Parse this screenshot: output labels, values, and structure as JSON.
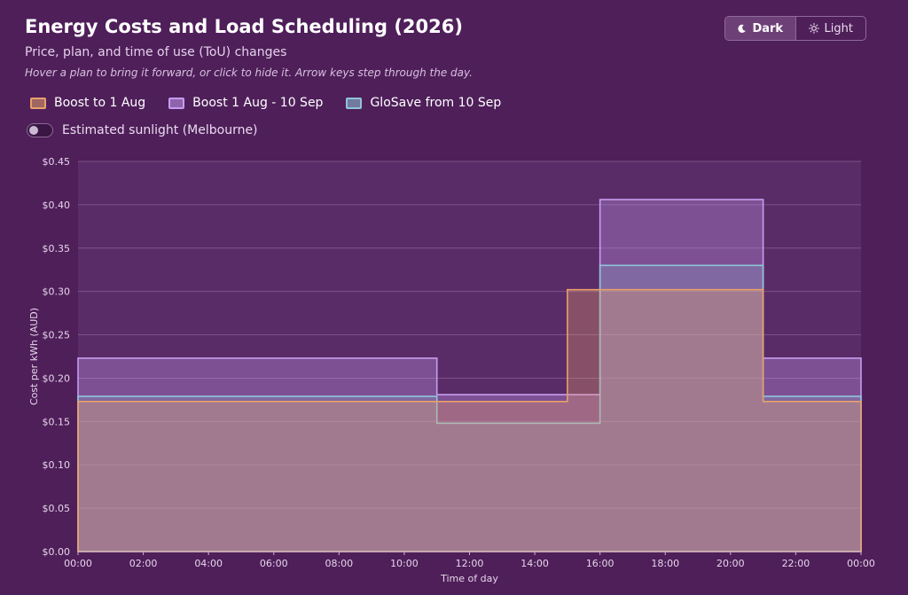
{
  "header": {
    "title": "Energy Costs and Load Scheduling (2026)",
    "subtitle": "Price, plan, and time of use (ToU) changes",
    "hint": "Hover a plan to bring it forward, or click to hide it. Arrow keys step through the day."
  },
  "theme": {
    "dark_label": "Dark",
    "light_label": "Light",
    "active": "dark"
  },
  "sunlight_toggle": {
    "label": "Estimated sunlight (Melbourne)",
    "on": false
  },
  "colors": {
    "background": "#4f1f5a",
    "plot_background": "#5a2c67",
    "grid": "#7a5286",
    "boost_aug": "#e8a06a",
    "boost_sep": "#c69cf0",
    "glosave": "#8fc4d8"
  },
  "chart_data": {
    "type": "area",
    "step": true,
    "xlabel": "Time of day",
    "ylabel": "Cost per kWh (AUD)",
    "xlim": [
      "00:00",
      "24:00"
    ],
    "ylim": [
      0,
      0.45
    ],
    "x_ticks": [
      "00:00",
      "02:00",
      "04:00",
      "06:00",
      "08:00",
      "10:00",
      "12:00",
      "14:00",
      "16:00",
      "18:00",
      "20:00",
      "22:00",
      "00:00"
    ],
    "y_ticks": [
      "$0.00",
      "$0.05",
      "$0.10",
      "$0.15",
      "$0.20",
      "$0.25",
      "$0.30",
      "$0.35",
      "$0.40",
      "$0.45"
    ],
    "grid": true,
    "legend_position": "top-left",
    "series": [
      {
        "name": "Boost to 1 Aug",
        "color_key": "boost_aug",
        "segments": [
          {
            "start": "00:00",
            "end": "15:00",
            "value": 0.173
          },
          {
            "start": "15:00",
            "end": "21:00",
            "value": 0.302
          },
          {
            "start": "21:00",
            "end": "24:00",
            "value": 0.173
          }
        ]
      },
      {
        "name": "Boost 1 Aug - 10 Sep",
        "color_key": "boost_sep",
        "segments": [
          {
            "start": "00:00",
            "end": "11:00",
            "value": 0.223
          },
          {
            "start": "11:00",
            "end": "16:00",
            "value": 0.181
          },
          {
            "start": "16:00",
            "end": "21:00",
            "value": 0.406
          },
          {
            "start": "21:00",
            "end": "24:00",
            "value": 0.223
          }
        ]
      },
      {
        "name": "GloSave from 10 Sep",
        "color_key": "glosave",
        "segments": [
          {
            "start": "00:00",
            "end": "11:00",
            "value": 0.179
          },
          {
            "start": "11:00",
            "end": "16:00",
            "value": 0.148
          },
          {
            "start": "16:00",
            "end": "21:00",
            "value": 0.33
          },
          {
            "start": "21:00",
            "end": "24:00",
            "value": 0.179
          }
        ]
      }
    ]
  }
}
